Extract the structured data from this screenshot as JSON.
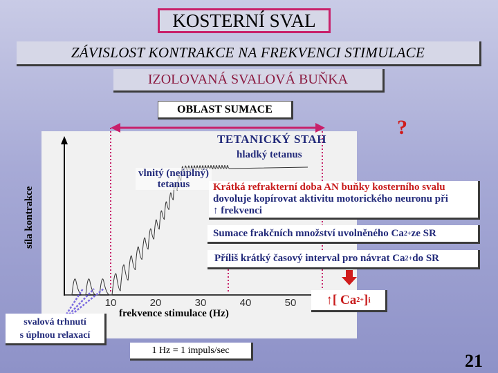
{
  "title": "KOSTERNÍ SVAL",
  "subtitle": "ZÁVISLOST KONTRAKCE NA FREKVENCI STIMULACE",
  "subtitle2": "IZOLOVANÁ SVALOVÁ BUŇKA",
  "oblast": "OBLAST SUMACE",
  "graph": {
    "y_label": "síla kontrakce",
    "x_label": "frekvence stimulace (Hz)",
    "x_ticks": [
      "10",
      "20",
      "30",
      "40",
      "50"
    ],
    "tetanic_label": "TETANICKÝ STAH",
    "smooth_label": "hladký tetanus",
    "wavy_label_1": "vlnitý (neúplný)",
    "wavy_label_2": "tetanus",
    "question": "?"
  },
  "info": {
    "refractory_red": "Krátká refrakterní doba  AN buňky kosterního svalu",
    "refractory_rest_1": "dovoluje kopírovat aktivitu motorického neuronu při",
    "refractory_arrow": "↑",
    "refractory_rest_2": "frekvenci",
    "summation_prefix": "Sumace  frakčních množství  uvolněného Ca",
    "summation_sup": "2+",
    "summation_suffix": " ze SR",
    "interval_prefix": "Příliš krátký časový interval pro návrat Ca",
    "interval_sup": "2+",
    "interval_suffix": " do SR"
  },
  "calcium": {
    "arrow": "↑",
    "bracket_open": " [ Ca",
    "sup": "2+",
    "bracket_close": "]",
    "sub": "i"
  },
  "twitch": {
    "line1": "svalová trhnutí",
    "line2": "s úplnou relaxací"
  },
  "hz_note": "1 Hz = 1 impuls/sec",
  "page_number": "21",
  "colors": {
    "title_border": "#c8206a",
    "accent_red": "#c81c1c",
    "text_blue": "#222a7a",
    "magenta_arrow": "#c8206a"
  }
}
